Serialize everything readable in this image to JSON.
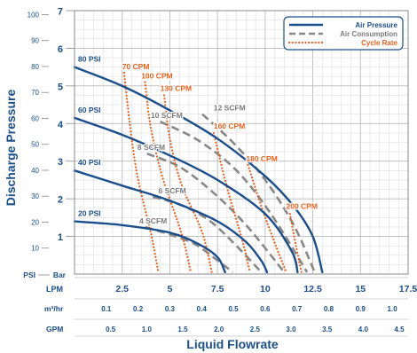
{
  "chart_data": {
    "type": "line",
    "xlabel": "Liquid Flowrate",
    "ylabel": "Discharge Pressure",
    "x_unit_labels": {
      "lpm": "LPM",
      "m3hr": "m³/hr",
      "gpm": "GPM"
    },
    "y_unit_labels": {
      "psi": "PSI",
      "bar": "Bar"
    },
    "xlim_lpm": [
      0,
      17.5
    ],
    "ylim_bar": [
      0,
      7
    ],
    "x_ticks_lpm": [
      "2.5",
      "5",
      "7.5",
      "10",
      "12.5",
      "15",
      "17.5"
    ],
    "x_ticks_m3hr": [
      "0.1",
      "0.2",
      "0.3",
      "0.4",
      "0.5",
      "0.6",
      "0.7",
      "0.8",
      "0.9",
      "1.0"
    ],
    "x_ticks_gpm": [
      "0.5",
      "1.0",
      "1.5",
      "2.0",
      "2.5",
      "3.0",
      "3.5",
      "4.0",
      "4.5"
    ],
    "y_ticks_bar": [
      "1",
      "2",
      "3",
      "4",
      "5",
      "6",
      "7"
    ],
    "y_ticks_psi": [
      "10",
      "20",
      "30",
      "40",
      "50",
      "60",
      "70",
      "80",
      "90",
      "100"
    ],
    "grid": true,
    "legend_position": "top-right",
    "legend": [
      {
        "name": "Air Pressure",
        "color": "#1a4e8c",
        "style": "solid"
      },
      {
        "name": "Air Consumption",
        "color": "#888888",
        "style": "dashed"
      },
      {
        "name": "Cycle Rate",
        "color": "#e8601c",
        "style": "dotted"
      }
    ],
    "series": [
      {
        "group": "Air Pressure",
        "label": "80 PSI",
        "x": [
          0,
          2.5,
          5,
          7.5,
          10,
          11.5,
          12.5,
          13
        ],
        "y": [
          5.5,
          5.0,
          4.35,
          3.6,
          2.6,
          1.8,
          1.0,
          0.05
        ]
      },
      {
        "group": "Air Pressure",
        "label": "60 PSI",
        "x": [
          0,
          2.5,
          5,
          7.5,
          10,
          11.4,
          11.7
        ],
        "y": [
          4.15,
          3.7,
          3.15,
          2.5,
          1.6,
          0.6,
          0.05
        ]
      },
      {
        "group": "Air Pressure",
        "label": "40 PSI",
        "x": [
          0,
          2.5,
          5,
          7.5,
          9,
          9.8,
          10.1
        ],
        "y": [
          2.75,
          2.35,
          1.95,
          1.4,
          0.85,
          0.35,
          0.05
        ]
      },
      {
        "group": "Air Pressure",
        "label": "20 PSI",
        "x": [
          0,
          2.5,
          5,
          6.5,
          7.5,
          7.9
        ],
        "y": [
          1.4,
          1.3,
          1.1,
          0.8,
          0.45,
          0.05
        ]
      },
      {
        "group": "Air Consumption",
        "label": "4 SCFM",
        "x": [
          3.7,
          5,
          6.3,
          7.4,
          8.3
        ],
        "y": [
          1.25,
          1.05,
          0.8,
          0.4,
          0.05
        ]
      },
      {
        "group": "Air Consumption",
        "label": "6 SCFM",
        "x": [
          4.1,
          5.5,
          7.0,
          8.3,
          9.8
        ],
        "y": [
          2.05,
          1.85,
          1.45,
          0.85,
          0.05
        ]
      },
      {
        "group": "Air Consumption",
        "label": "8 SCFM",
        "x": [
          3.8,
          5.5,
          7.2,
          9.0,
          11.0
        ],
        "y": [
          3.2,
          2.85,
          2.2,
          1.3,
          0.05
        ]
      },
      {
        "group": "Air Consumption",
        "label": "10 SCFM",
        "x": [
          4.5,
          6.5,
          8.5,
          10.3,
          12.2
        ],
        "y": [
          4.05,
          3.55,
          2.75,
          1.6,
          0.05
        ]
      },
      {
        "group": "Air Consumption",
        "label": "12 SCFM",
        "x": [
          6.7,
          8.4,
          10.0,
          11.5,
          12.6
        ],
        "y": [
          4.25,
          3.45,
          2.5,
          1.3,
          0.05
        ]
      },
      {
        "group": "Cycle Rate",
        "label": "70 CPM",
        "x": [
          2.6,
          2.9,
          3.3,
          4.0,
          4.4
        ],
        "y": [
          5.35,
          4.0,
          2.6,
          1.1,
          0.05
        ]
      },
      {
        "group": "Cycle Rate",
        "label": "100 CPM",
        "x": [
          3.7,
          4.0,
          4.6,
          5.6,
          6.1
        ],
        "y": [
          5.1,
          3.9,
          2.6,
          1.1,
          0.05
        ]
      },
      {
        "group": "Cycle Rate",
        "label": "130 CPM",
        "x": [
          4.7,
          5.0,
          5.6,
          6.7,
          7.2
        ],
        "y": [
          4.75,
          3.6,
          2.4,
          1.1,
          0.05
        ]
      },
      {
        "group": "Cycle Rate",
        "label": "160 CPM",
        "x": [
          7.3,
          8.0,
          8.8,
          9.2
        ],
        "y": [
          3.75,
          2.3,
          0.9,
          0.05
        ]
      },
      {
        "group": "Cycle Rate",
        "label": "180 CPM",
        "x": [
          9.1,
          9.8,
          10.6,
          11.1
        ],
        "y": [
          2.9,
          1.8,
          0.7,
          0.05
        ]
      },
      {
        "group": "Cycle Rate",
        "label": "200 CPM",
        "x": [
          11.3,
          11.6,
          11.9
        ],
        "y": [
          1.6,
          0.8,
          0.05
        ]
      }
    ]
  }
}
